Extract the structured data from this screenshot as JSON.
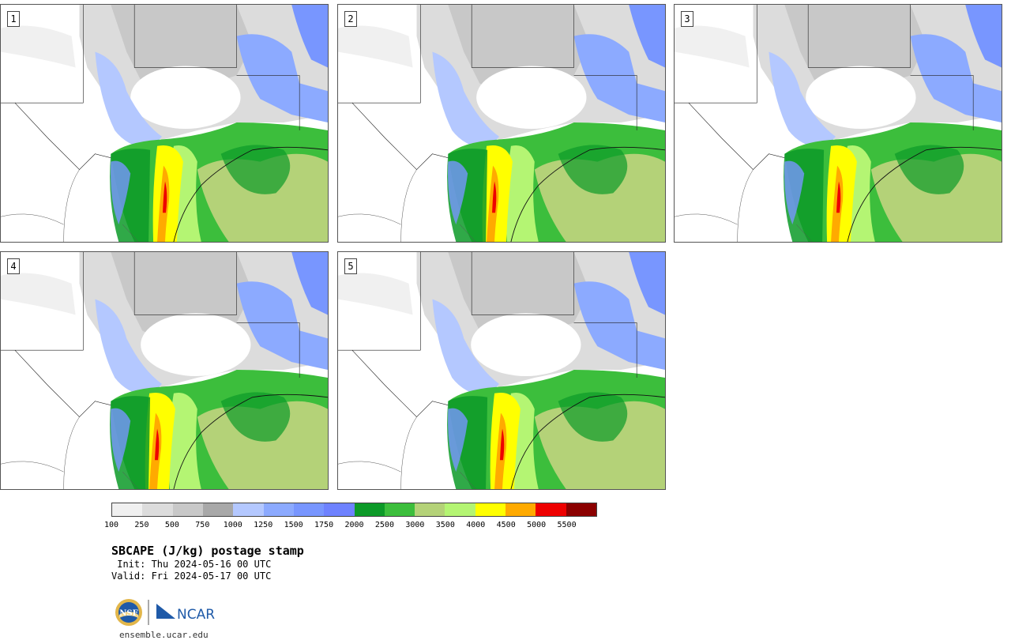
{
  "panels": [
    {
      "label": "1"
    },
    {
      "label": "2"
    },
    {
      "label": "3"
    },
    {
      "label": "4"
    },
    {
      "label": "5"
    }
  ],
  "colorbar": {
    "colors": [
      "#f0f0f0",
      "#dcdcdc",
      "#c8c8c8",
      "#a8a8a8",
      "#b4c8ff",
      "#8caaff",
      "#7896ff",
      "#6e82ff",
      "#0c9a28",
      "#3cbe3c",
      "#b4d278",
      "#b4f573",
      "#ffff00",
      "#ffaa00",
      "#ee0000",
      "#8b0000"
    ],
    "ticks": [
      "100",
      "250",
      "500",
      "750",
      "1000",
      "1250",
      "1500",
      "1750",
      "2000",
      "2500",
      "3000",
      "3500",
      "4000",
      "4500",
      "5000",
      "5500"
    ]
  },
  "title": "SBCAPE (J/kg) postage stamp",
  "init": " Init: Thu 2024-05-16 00 UTC",
  "valid": "Valid: Fri 2024-05-17 00 UTC",
  "logos": {
    "nsf": "NSF",
    "ncar": "NCAR"
  },
  "url": "ensemble.ucar.edu"
}
